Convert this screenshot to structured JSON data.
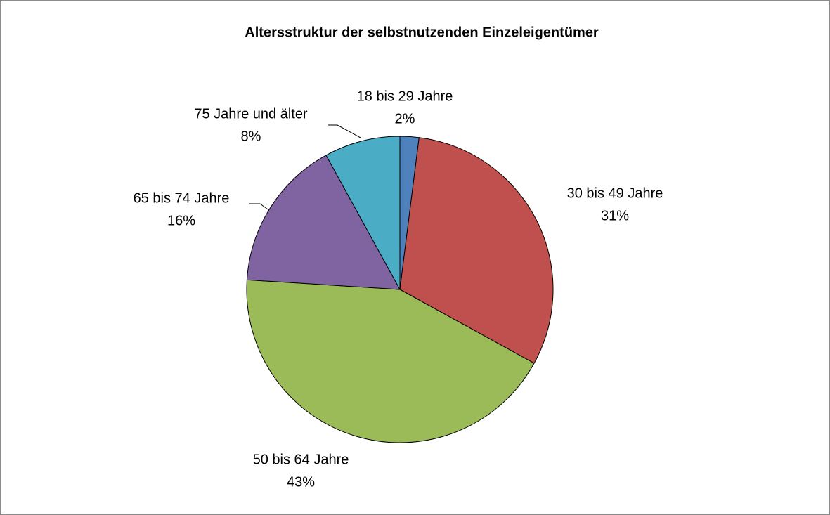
{
  "chart_data": {
    "type": "pie",
    "title": "Altersstruktur der selbstnutzenden Einzeleigentümer",
    "categories": [
      "18 bis 29 Jahre",
      "30 bis 49 Jahre",
      "50 bis 64 Jahre",
      "65 bis 74 Jahre",
      "75 Jahre und älter"
    ],
    "values": [
      2,
      31,
      43,
      16,
      8
    ],
    "value_labels": [
      "2%",
      "31%",
      "43%",
      "16%",
      "8%"
    ],
    "colors": [
      "#4f81bd",
      "#c0504d",
      "#9bbb59",
      "#8064a2",
      "#4bacc6"
    ]
  }
}
